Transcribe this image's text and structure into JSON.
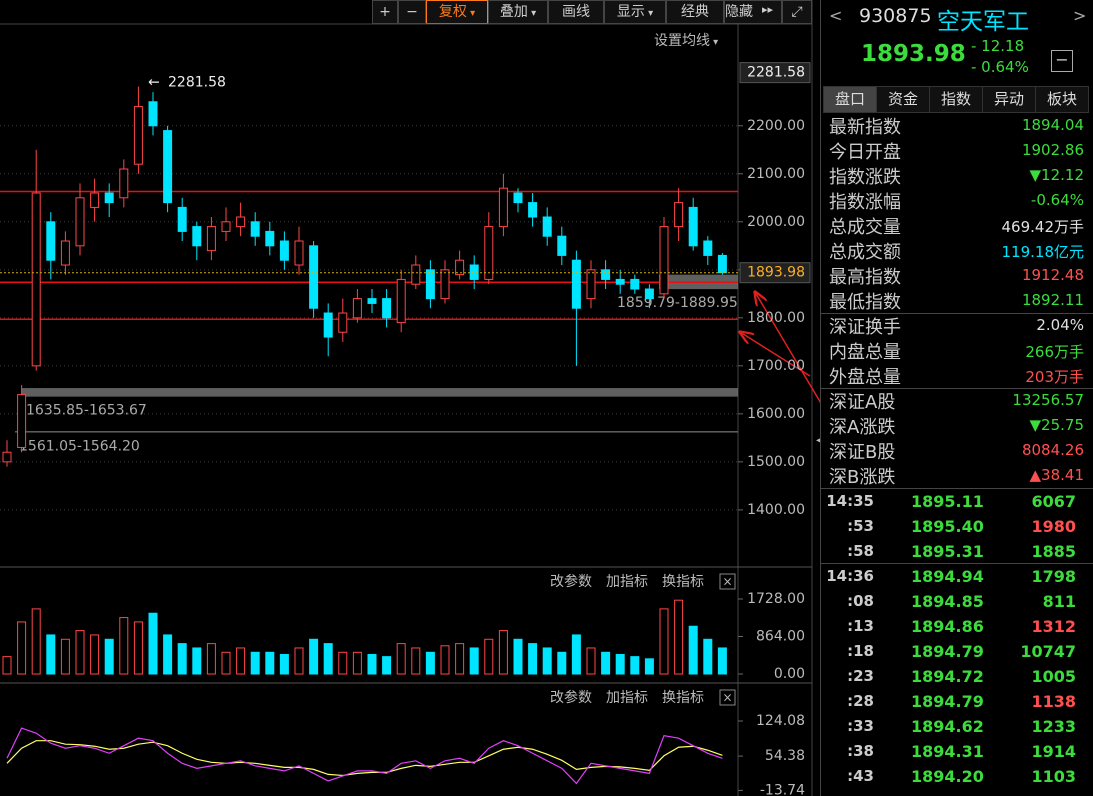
{
  "toolbar": {
    "buttons": [
      "+",
      "−",
      "复权",
      "叠加",
      "画线",
      "显示",
      "经典",
      "隐藏"
    ],
    "ma_setting": "设置均线"
  },
  "chart_data": [
    {
      "type": "candlestick",
      "open": [
        1500,
        1530,
        1700,
        2000,
        1910,
        1950,
        2030,
        2060,
        2050,
        2120,
        2250,
        2190,
        2030,
        1990,
        1940,
        1980,
        1990,
        2000,
        1980,
        1960,
        1910,
        1950,
        1810,
        1770,
        1800,
        1840,
        1840,
        1790,
        1870,
        1900,
        1840,
        1890,
        1910,
        1880,
        1990,
        2060,
        2040,
        2010,
        1970,
        1920,
        1840,
        1900,
        1880,
        1880,
        1860,
        1850,
        1990,
        2030,
        1960,
        1930
      ],
      "high": [
        1545,
        1660,
        2150,
        2020,
        1980,
        2080,
        2090,
        2080,
        2130,
        2281.58,
        2270,
        2200,
        2050,
        2000,
        2010,
        2030,
        2040,
        2020,
        2000,
        1980,
        1990,
        1960,
        1830,
        1840,
        1860,
        1860,
        1860,
        1900,
        1930,
        1920,
        1920,
        1940,
        1930,
        2020,
        2100,
        2070,
        2060,
        2030,
        1990,
        1940,
        1920,
        1920,
        1900,
        1890,
        1870,
        2010,
        2070,
        2050,
        1970,
        1935
      ],
      "low": [
        1490,
        1520,
        1690,
        1880,
        1890,
        1930,
        2000,
        2010,
        2030,
        2100,
        2180,
        2020,
        1960,
        1920,
        1920,
        1960,
        1970,
        1950,
        1930,
        1900,
        1890,
        1800,
        1720,
        1750,
        1790,
        1810,
        1780,
        1770,
        1860,
        1820,
        1830,
        1880,
        1860,
        1870,
        1970,
        2020,
        1990,
        1950,
        1910,
        1700,
        1820,
        1860,
        1850,
        1850,
        1820,
        1840,
        1960,
        1940,
        1910,
        1890
      ],
      "close": [
        1520,
        1640,
        2060,
        1920,
        1960,
        2050,
        2060,
        2040,
        2110,
        2240,
        2200,
        2040,
        1980,
        1950,
        1990,
        2000,
        2010,
        1970,
        1950,
        1920,
        1960,
        1820,
        1760,
        1810,
        1840,
        1830,
        1800,
        1880,
        1910,
        1840,
        1900,
        1920,
        1880,
        1990,
        2070,
        2040,
        2010,
        1970,
        1930,
        1820,
        1900,
        1880,
        1870,
        1860,
        1840,
        1990,
        2040,
        1950,
        1930,
        1894
      ],
      "up_color": "#ff4646",
      "down_color": "#00e5ff",
      "ylim": [
        1281,
        2412
      ],
      "yticks": [
        {
          "value": 2200,
          "label": "2200.00"
        },
        {
          "value": 2100,
          "label": "2100.00"
        },
        {
          "value": 2000,
          "label": "2000.00"
        },
        {
          "value": 1900,
          "label": "1900.00"
        },
        {
          "value": 1800,
          "label": "1800.00"
        },
        {
          "value": 1700,
          "label": "1700.00"
        },
        {
          "value": 1600,
          "label": "1600.00"
        },
        {
          "value": 1500,
          "label": "1500.00"
        },
        {
          "value": 1400,
          "label": "1400.00"
        }
      ],
      "grid": true,
      "max_label": 2281.58,
      "last_price": 1893.98,
      "levels": [
        2063,
        1874,
        1797
      ],
      "level_color": "#e81010",
      "zones": [
        {
          "low": 1635.85,
          "high": 1653.67,
          "label": "1635.85-1653.67"
        },
        {
          "low": 1561.05,
          "high": 1564.2,
          "label": "1561.05-1564.20"
        },
        {
          "low": 1859.79,
          "high": 1889.95,
          "label": "1859.79-1889.95"
        }
      ]
    },
    {
      "type": "bar",
      "values": [
        400,
        1200,
        1500,
        900,
        800,
        1000,
        900,
        800,
        1300,
        1200,
        1400,
        900,
        700,
        600,
        700,
        500,
        600,
        500,
        500,
        450,
        600,
        800,
        700,
        500,
        500,
        450,
        400,
        700,
        600,
        500,
        650,
        700,
        600,
        800,
        1000,
        800,
        700,
        600,
        500,
        900,
        600,
        500,
        450,
        400,
        350,
        1500,
        1700,
        1100,
        800,
        600
      ],
      "ylim": [
        -207,
        1935
      ],
      "yticks": [
        {
          "value": 1728,
          "label": "1728.00"
        },
        {
          "value": 864,
          "label": "864.00"
        },
        {
          "value": 0,
          "label": "0.00"
        }
      ],
      "tools": [
        "改参数",
        "加指标",
        "换指标"
      ]
    },
    {
      "type": "line",
      "series": [
        {
          "color": "#ffff66",
          "values": [
            40,
            70,
            85,
            85,
            78,
            77,
            74,
            68,
            70,
            78,
            82,
            75,
            60,
            48,
            42,
            40,
            42,
            40,
            36,
            32,
            32,
            28,
            18,
            16,
            20,
            22,
            22,
            30,
            36,
            34,
            38,
            42,
            42,
            55,
            68,
            72,
            68,
            58,
            46,
            28,
            32,
            34,
            33,
            30,
            26,
            55,
            72,
            74,
            66,
            56
          ]
        },
        {
          "color": "#e040fb",
          "values": [
            50,
            110,
            100,
            80,
            70,
            75,
            70,
            60,
            75,
            90,
            85,
            60,
            40,
            30,
            35,
            40,
            45,
            35,
            30,
            25,
            35,
            20,
            5,
            15,
            25,
            25,
            20,
            40,
            45,
            30,
            45,
            50,
            40,
            70,
            85,
            75,
            60,
            45,
            30,
            0,
            40,
            35,
            30,
            25,
            20,
            95,
            90,
            75,
            60,
            50
          ]
        }
      ],
      "ylim": [
        -24.9,
        153.9
      ],
      "yticks": [
        {
          "value": 124.08,
          "label": "124.08"
        },
        {
          "value": 54.38,
          "label": "54.38"
        },
        {
          "value": -13.74,
          "label": "-13.74"
        }
      ],
      "tools": [
        "改参数",
        "加指标",
        "换指标"
      ]
    }
  ],
  "quote": {
    "code": "930875",
    "name": "空天军工",
    "price": "1893.98",
    "change": "- 12.18",
    "pct": "- 0.64%",
    "tabs": [
      "盘口",
      "资金",
      "指数",
      "异动",
      "板块"
    ],
    "rows": [
      [
        "最新指数",
        "1894.04",
        "#3ddc3d"
      ],
      [
        "今日开盘",
        "1902.86",
        "#3ddc3d"
      ],
      [
        "指数涨跌",
        "▼12.12",
        "#3ddc3d"
      ],
      [
        "指数涨幅",
        "-0.64%",
        "#3ddc3d"
      ],
      [
        "总成交量",
        "469.42万手",
        "#e0e0e0"
      ],
      [
        "总成交额",
        "119.18亿元",
        "#00e5ff"
      ],
      [
        "最高指数",
        "1912.48",
        "#ff5050"
      ],
      [
        "最低指数",
        "1892.11",
        "#3ddc3d"
      ],
      [
        "深证换手",
        "2.04%",
        "#e0e0e0"
      ],
      [
        "内盘总量",
        "266万手",
        "#3ddc3d"
      ],
      [
        "外盘总量",
        "203万手",
        "#ff5050"
      ],
      [
        "深证A股",
        "13256.57",
        "#3ddc3d"
      ],
      [
        "深A涨跌",
        "▼25.75",
        "#3ddc3d"
      ],
      [
        "深证B股",
        "8084.26",
        "#ff5050"
      ],
      [
        "深B涨跌",
        "▲38.41",
        "#ff5050"
      ]
    ],
    "ticks": [
      [
        "14:35",
        "1895.11",
        "6067",
        "#3ddc3d"
      ],
      [
        ":53",
        "1895.40",
        "1980",
        "#ff5050"
      ],
      [
        ":58",
        "1895.31",
        "1885",
        "#3ddc3d"
      ],
      [
        "14:36",
        "1894.94",
        "1798",
        "#3ddc3d"
      ],
      [
        ":08",
        "1894.85",
        "811",
        "#3ddc3d"
      ],
      [
        ":13",
        "1894.86",
        "1312",
        "#ff5050"
      ],
      [
        ":18",
        "1894.79",
        "10747",
        "#3ddc3d"
      ],
      [
        ":23",
        "1894.72",
        "1005",
        "#3ddc3d"
      ],
      [
        ":28",
        "1894.79",
        "1138",
        "#ff5050"
      ],
      [
        ":33",
        "1894.62",
        "1233",
        "#3ddc3d"
      ],
      [
        ":38",
        "1894.31",
        "1914",
        "#3ddc3d"
      ],
      [
        ":43",
        "1894.20",
        "1103",
        "#3ddc3d"
      ]
    ]
  }
}
